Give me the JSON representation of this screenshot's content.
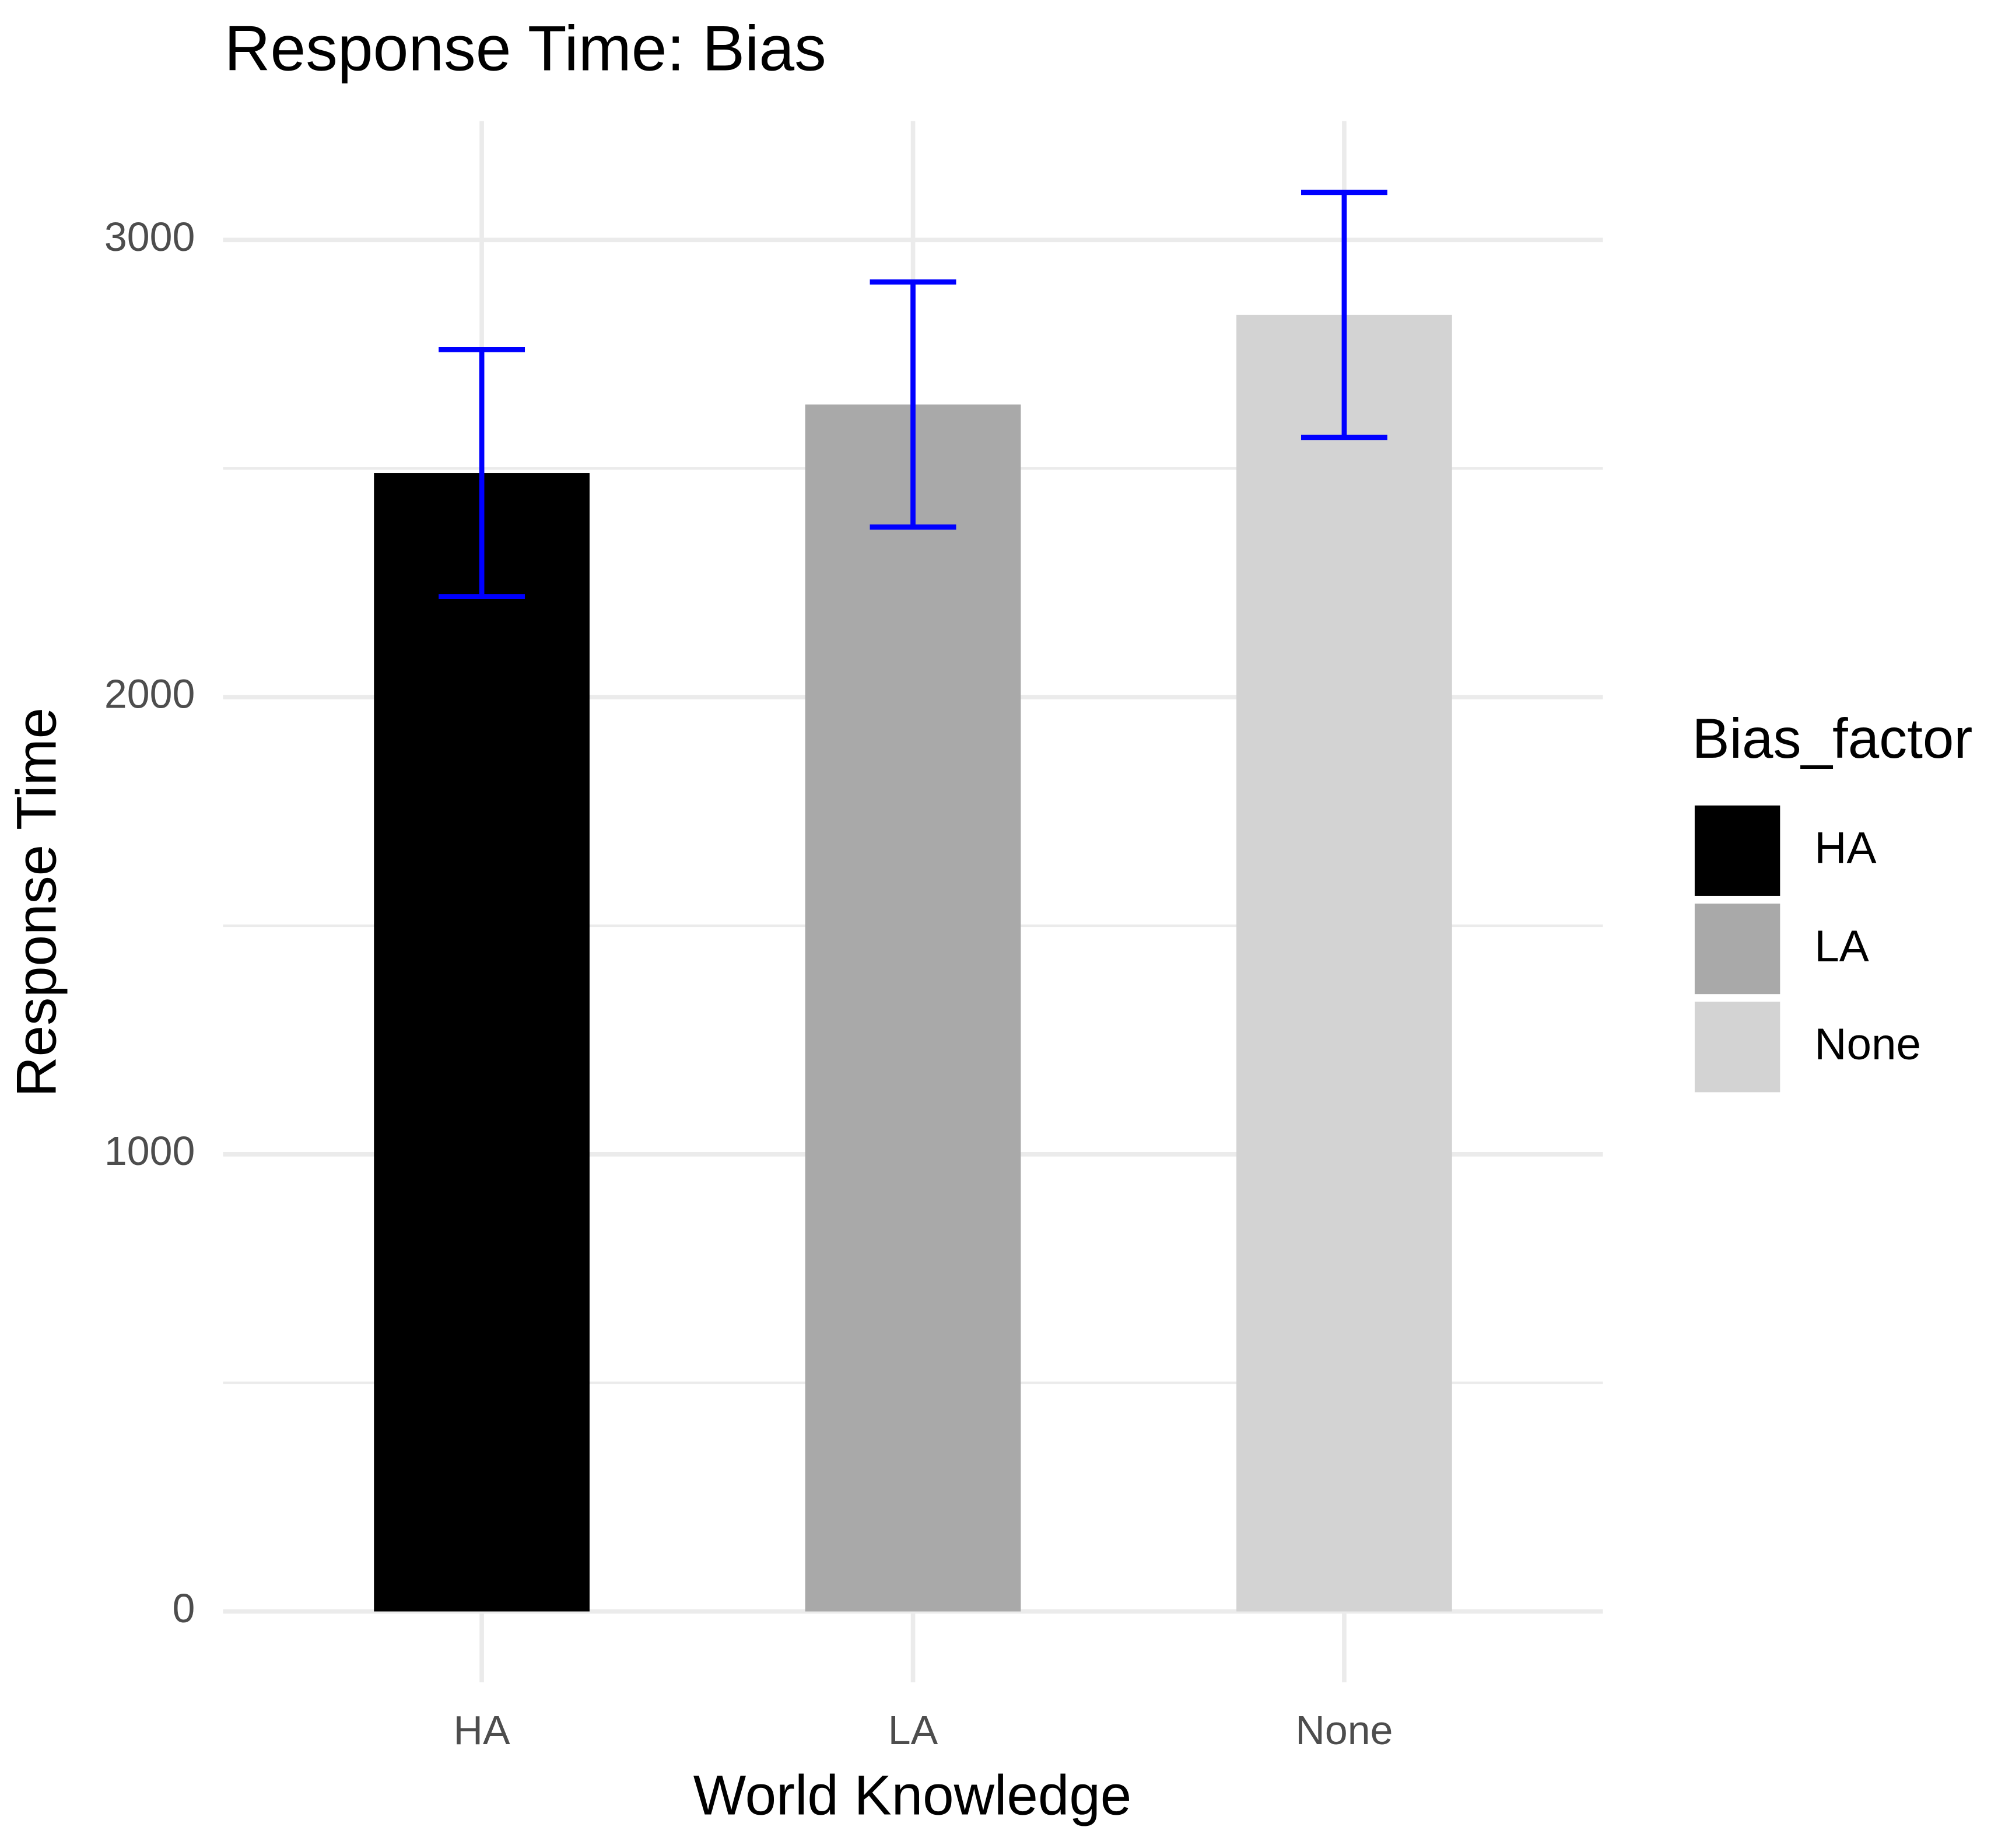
{
  "chart_data": {
    "type": "bar",
    "title": "Response Time: Bias",
    "x_label": "World Knowledge",
    "y_label": "Response Time",
    "categories": [
      "HA",
      "LA",
      "None"
    ],
    "values": [
      2490,
      2640,
      2836
    ],
    "errors": [
      270,
      268,
      268
    ],
    "colors": [
      "#000000",
      "#a9a9a9",
      "#d3d3d3"
    ],
    "error_color": "#0000ff",
    "ylim": [
      -155,
      3260
    ],
    "yticks": [
      0,
      1000,
      2000,
      3000
    ],
    "minor_yticks": [
      500,
      1500,
      2500
    ],
    "grid": true,
    "legend": {
      "title": "Bias_factor",
      "position": "right"
    }
  }
}
